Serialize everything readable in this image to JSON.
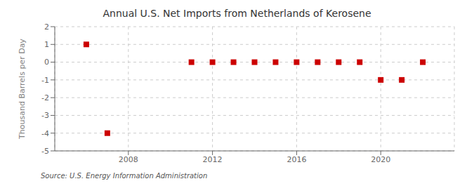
{
  "chart_data": {
    "type": "scatter",
    "title": "Annual U.S. Net Imports from Netherlands of Kerosene",
    "y_label": "Thousand Barrels per Day",
    "annotations": [
      "Source: U.S. Energy Information Administration"
    ],
    "x": [
      2006,
      2007,
      2011,
      2012,
      2013,
      2014,
      2015,
      2016,
      2017,
      2018,
      2019,
      2020,
      2021,
      2022
    ],
    "values": [
      1,
      -4,
      0,
      0,
      0,
      0,
      0,
      0,
      0,
      0,
      0,
      -1,
      -1,
      0
    ],
    "color": "#cc0000",
    "marker": "square",
    "xlim": [
      2004.5,
      2023.5
    ],
    "xticks": [
      2008,
      2012,
      2016,
      2020
    ],
    "ylim": [
      -5,
      2
    ],
    "yticks": [
      -5,
      -4,
      -3,
      -2,
      -1,
      0,
      1,
      2
    ],
    "grid": true
  }
}
